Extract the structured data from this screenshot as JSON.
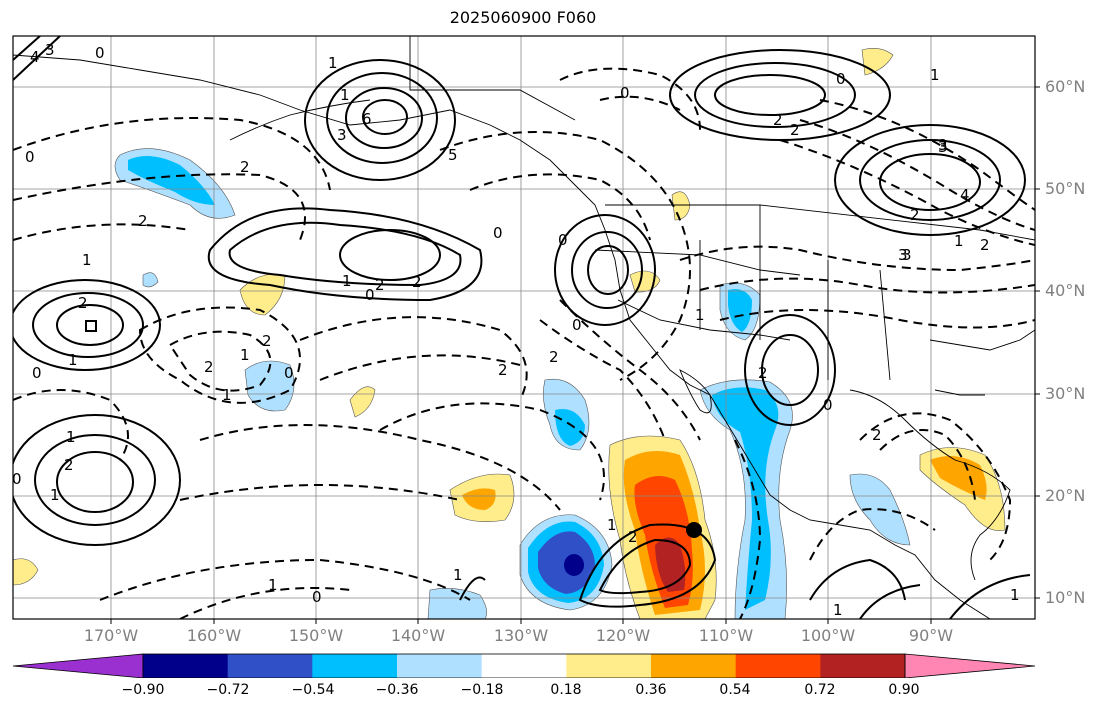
{
  "title": "2025060900 F060",
  "lat_labels": [
    "60°N",
    "50°N",
    "40°N",
    "30°N",
    "20°N",
    "10°N"
  ],
  "lon_labels": [
    "170°W",
    "160°W",
    "150°W",
    "140°W",
    "130°W",
    "120°W",
    "110°W",
    "100°W",
    "90°W"
  ],
  "colorbar": {
    "ticks": [
      "−0.90",
      "−0.72",
      "−0.54",
      "−0.36",
      "−0.18",
      "0.18",
      "0.36",
      "0.54",
      "0.72",
      "0.90"
    ],
    "colors": [
      "#9b30d0",
      "#00008b",
      "#3050c8",
      "#00bfff",
      "#b0e0ff",
      "#ffffff",
      "#ffec8b",
      "#ffa500",
      "#ff4500",
      "#b22222",
      "#ff85b3"
    ]
  },
  "contour_labels": [
    "4",
    "3",
    "0",
    "1",
    "1",
    "6",
    "3",
    "5",
    "2",
    "0",
    "0",
    "1",
    "2",
    "2",
    "3",
    "2",
    "3",
    "0",
    "2",
    "1",
    "1",
    "2",
    "2",
    "0",
    "0",
    "0",
    "2",
    "1",
    "0",
    "2",
    "1",
    "2",
    "1",
    "0",
    "2",
    "0",
    "1",
    "2",
    "2",
    "2",
    "0",
    "2",
    "1",
    "1",
    "0",
    "2",
    "1",
    "1",
    "0",
    "1",
    "3",
    "4",
    "1",
    "2",
    "3",
    "1",
    "1"
  ],
  "marker": "storm-center"
}
